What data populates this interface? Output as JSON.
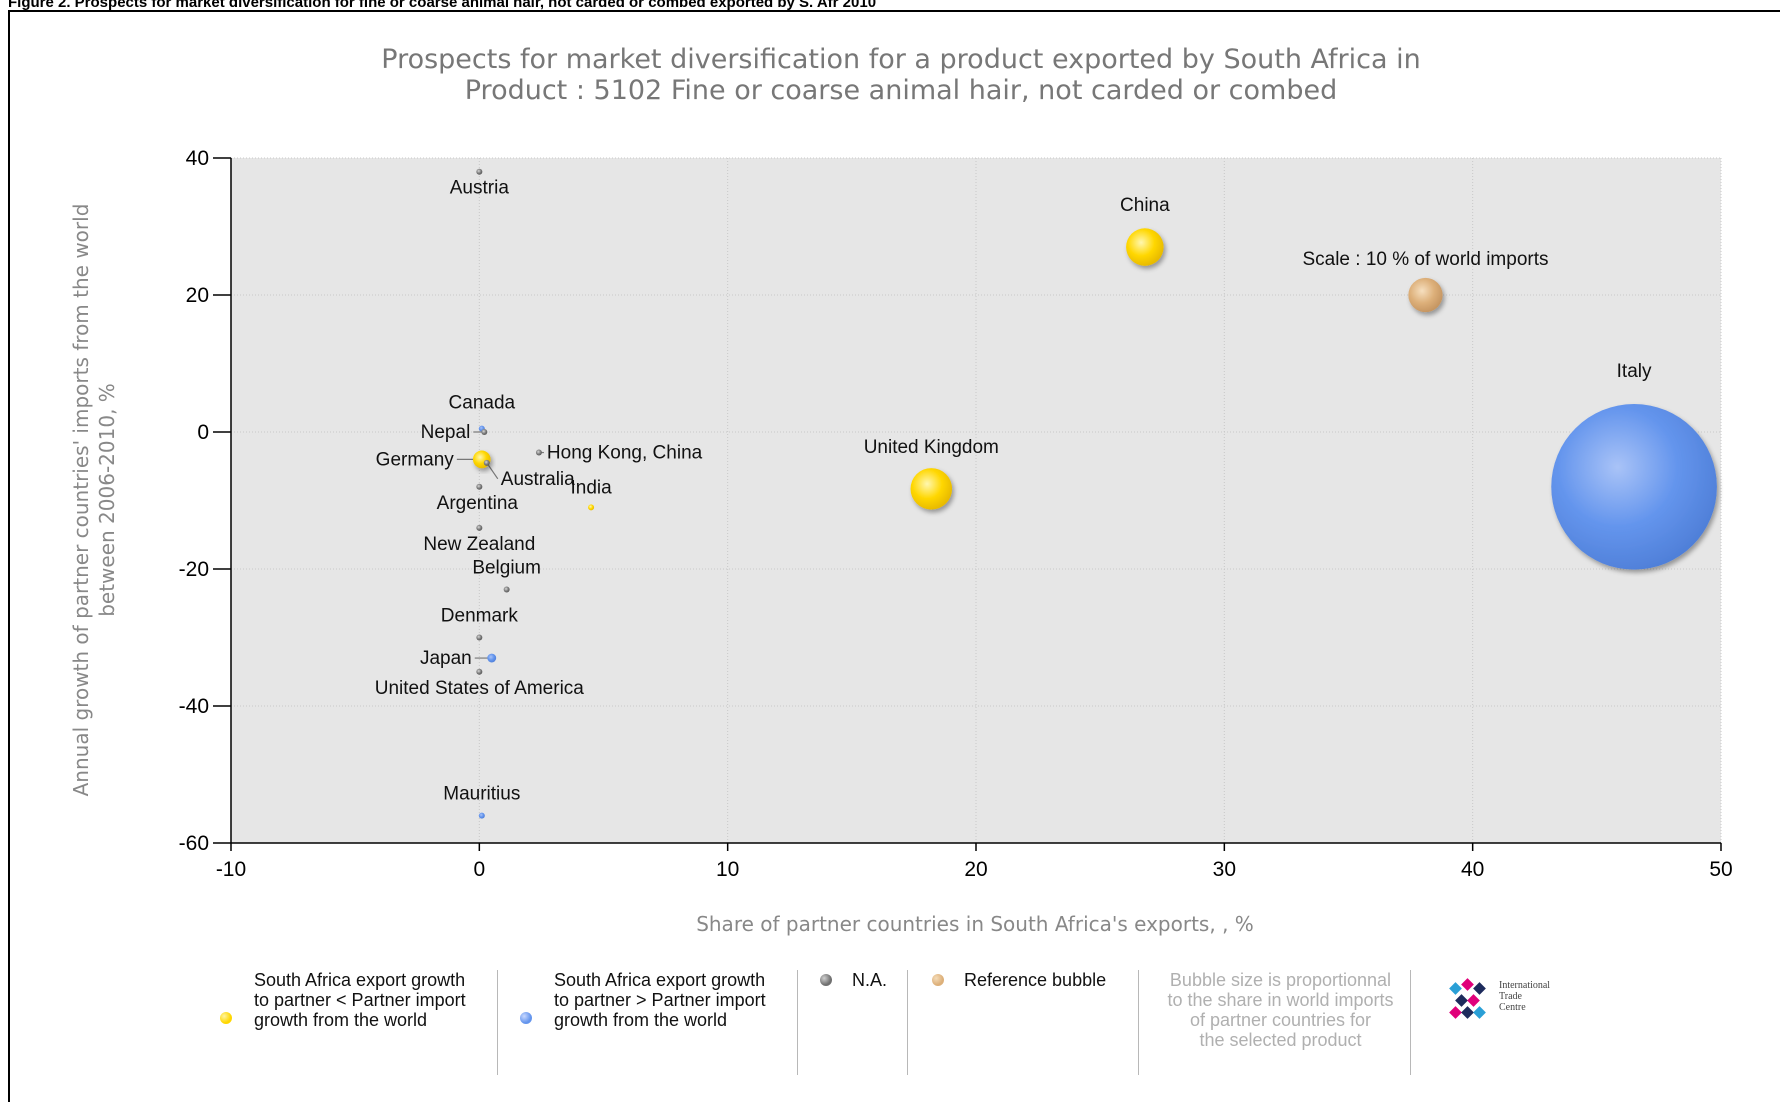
{
  "figure_caption": "Figure 2. Prospects for market diversification for fine or coarse animal hair, not carded or combed exported by S. Afr 2010",
  "chart_data": {
    "type": "scatter",
    "title_line1": "Prospects for market diversification for a product exported by South Africa in",
    "title_line2": "Product : 5102 Fine or coarse animal hair, not carded or combed",
    "xlabel": "Share of partner countries in South Africa's exports, , %",
    "ylabel_line1": "Annual growth of partner countries' imports from the world",
    "ylabel_line2": "between 2006-2010, %",
    "xlim": [
      -10,
      50
    ],
    "ylim": [
      -60,
      40
    ],
    "x_ticks": [
      -10,
      0,
      10,
      20,
      30,
      40,
      50
    ],
    "y_ticks": [
      40,
      20,
      0,
      -20,
      -40,
      -60
    ],
    "grid": true,
    "colors": {
      "yellow": "#ffd700",
      "blue": "#6495ed",
      "gray": "#808080",
      "reference": "#ddb07a",
      "plot_bg": "#e6e6e6"
    },
    "points": [
      {
        "label": "Austria",
        "x": 0,
        "y": 38,
        "size": 0.02,
        "group": "gray"
      },
      {
        "label": "China",
        "x": 26.8,
        "y": 27,
        "size": 1.8,
        "group": "yellow"
      },
      {
        "label": "Scale : 10 % of world imports",
        "x": 38.1,
        "y": 20,
        "size": 1.5,
        "group": "reference"
      },
      {
        "label": "Italy",
        "x": 46.5,
        "y": -8,
        "size": 35,
        "group": "blue"
      },
      {
        "label": "Canada",
        "x": 0.1,
        "y": 0.5,
        "size": 0.02,
        "group": "blue"
      },
      {
        "label": "Nepal",
        "x": 0.2,
        "y": 0,
        "size": 0.02,
        "group": "gray"
      },
      {
        "label": "Germany",
        "x": 0.1,
        "y": -4,
        "size": 0.4,
        "group": "yellow"
      },
      {
        "label": "Australia",
        "x": 0.3,
        "y": -4.5,
        "size": 0.02,
        "group": "gray"
      },
      {
        "label": "Hong Kong, China",
        "x": 2.4,
        "y": -3,
        "size": 0.02,
        "group": "gray"
      },
      {
        "label": "India",
        "x": 4.5,
        "y": -11,
        "size": 0.03,
        "group": "yellow"
      },
      {
        "label": "United Kingdom",
        "x": 18.2,
        "y": -8.3,
        "size": 2.2,
        "group": "yellow"
      },
      {
        "label": "Argentina",
        "x": 0,
        "y": -8,
        "size": 0.02,
        "group": "gray"
      },
      {
        "label": "New Zealand",
        "x": 0,
        "y": -14,
        "size": 0.02,
        "group": "gray"
      },
      {
        "label": "Belgium",
        "x": 1.1,
        "y": -23,
        "size": 0.03,
        "group": "gray"
      },
      {
        "label": "Denmark",
        "x": 0,
        "y": -30,
        "size": 0.02,
        "group": "gray"
      },
      {
        "label": "Japan",
        "x": 0.5,
        "y": -33,
        "size": 0.1,
        "group": "blue"
      },
      {
        "label": "United States of America",
        "x": 0,
        "y": -35,
        "size": 0.02,
        "group": "gray"
      },
      {
        "label": "Mauritius",
        "x": 0.1,
        "y": -56,
        "size": 0.02,
        "group": "blue"
      }
    ]
  },
  "legend": {
    "yellow_line1": "South Africa export growth",
    "yellow_line2": "to partner < Partner import",
    "yellow_line3": "growth from the world",
    "blue_line1": "South Africa export growth",
    "blue_line2": "to partner > Partner import",
    "blue_line3": "growth from the world",
    "na": "N.A.",
    "reference": "Reference bubble",
    "note_line1": "Bubble size is proportionnal",
    "note_line2": "to the share in world imports",
    "note_line3": "of partner countries for",
    "note_line4": "the selected product",
    "logo_line1": "International",
    "logo_line2": "Trade",
    "logo_line3": "Centre"
  }
}
